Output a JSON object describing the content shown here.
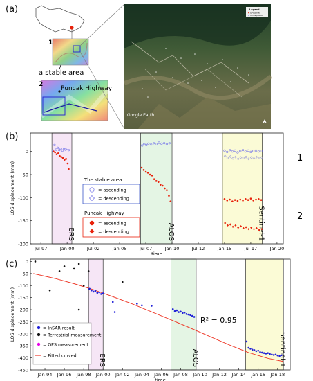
{
  "figure": {
    "panel_a_label": "(a)",
    "panel_b_label": "(b)",
    "panel_c_label": "(c)"
  },
  "panel_a": {
    "inset1_number": "1",
    "inset1_caption": "a stable area",
    "inset2_number": "2",
    "inset2_caption": "Puncak Highway",
    "satellite_watermark": "Google Earth",
    "satellite_legend_title": "Legend",
    "satellite_legend_items": [
      "GPS points",
      "Terms points"
    ]
  },
  "chart_data": [
    {
      "type": "scatter",
      "panel": "b",
      "xlabel": "time",
      "ylabel": "LOS displacement (mm)",
      "ylim": [
        -200,
        40
      ],
      "xlim": [
        1996.5,
        2020.6
      ],
      "yticks": [
        0,
        -50,
        -100,
        -150,
        -200
      ],
      "xticks": [
        {
          "label": "Jul-97",
          "value": 1997.5
        },
        {
          "label": "Jan-00",
          "value": 2000.0
        },
        {
          "label": "Jul-02",
          "value": 2002.5
        },
        {
          "label": "Jan-05",
          "value": 2005.0
        },
        {
          "label": "Jul-07",
          "value": 2007.5
        },
        {
          "label": "Jan-10",
          "value": 2010.0
        },
        {
          "label": "Jul-12",
          "value": 2012.5
        },
        {
          "label": "Jan-15",
          "value": 2015.0
        },
        {
          "label": "Jul-17",
          "value": 2017.5
        },
        {
          "label": "Jan-20",
          "value": 2020.0
        }
      ],
      "periods": [
        {
          "name": "ERS",
          "start": 1998.55,
          "end": 2000.45,
          "color": "#f6e6f6"
        },
        {
          "name": "ALOS",
          "start": 2007.0,
          "end": 2010.0,
          "color": "#e4f5e4"
        },
        {
          "name": "Sentinel-1",
          "start": 2014.8,
          "end": 2018.6,
          "color": "#fbfbd6"
        }
      ],
      "legend": {
        "stable_title": "The stable area",
        "ascending_label": "= ascending",
        "descending_label": "= descending",
        "highway_title": "Puncak Highway"
      },
      "side_labels": {
        "top": "1",
        "bottom": "2"
      },
      "series": [
        {
          "group": "stable",
          "orbit": "ascending",
          "color": "#7b7be8",
          "points": [
            [
              1998.65,
              2
            ],
            [
              1998.8,
              14
            ],
            [
              1998.95,
              4
            ],
            [
              1999.1,
              8
            ],
            [
              1999.25,
              3
            ],
            [
              1999.4,
              6
            ],
            [
              1999.55,
              2
            ],
            [
              1999.7,
              5
            ],
            [
              1999.85,
              4
            ],
            [
              2000.0,
              6
            ],
            [
              2000.15,
              3
            ]
          ]
        },
        {
          "group": "stable",
          "orbit": "ascending",
          "color": "#7b7be8",
          "points": [
            [
              2007.15,
              13
            ],
            [
              2007.35,
              16
            ],
            [
              2007.55,
              14
            ],
            [
              2007.75,
              17
            ],
            [
              2008.0,
              15
            ],
            [
              2008.25,
              18
            ],
            [
              2008.5,
              16
            ],
            [
              2008.75,
              19
            ],
            [
              2009.0,
              17
            ],
            [
              2009.25,
              18
            ],
            [
              2009.5,
              16
            ],
            [
              2009.75,
              18
            ]
          ]
        },
        {
          "group": "stable",
          "orbit": "ascending",
          "color": "#7b7be8",
          "points": [
            [
              2015.0,
              2
            ],
            [
              2015.25,
              -1
            ],
            [
              2015.5,
              3
            ],
            [
              2015.75,
              0
            ],
            [
              2016.0,
              2
            ],
            [
              2016.25,
              -2
            ],
            [
              2016.5,
              1
            ],
            [
              2016.75,
              3
            ],
            [
              2017.0,
              0
            ],
            [
              2017.25,
              2
            ],
            [
              2017.5,
              -1
            ],
            [
              2017.75,
              1
            ],
            [
              2018.0,
              2
            ],
            [
              2018.25,
              0
            ],
            [
              2018.5,
              1
            ]
          ]
        },
        {
          "group": "stable",
          "orbit": "descending",
          "color": "#a0a0d8",
          "points": [
            [
              2015.05,
              -10
            ],
            [
              2015.3,
              -14
            ],
            [
              2015.55,
              -11
            ],
            [
              2015.8,
              -15
            ],
            [
              2016.05,
              -12
            ],
            [
              2016.3,
              -16
            ],
            [
              2016.55,
              -13
            ],
            [
              2016.8,
              -14
            ],
            [
              2017.05,
              -12
            ],
            [
              2017.3,
              -16
            ],
            [
              2017.55,
              -13
            ],
            [
              2017.8,
              -15
            ],
            [
              2018.05,
              -12
            ],
            [
              2018.3,
              -14
            ],
            [
              2018.55,
              -13
            ]
          ]
        },
        {
          "group": "highway",
          "orbit": "ascending",
          "color": "#e8220c",
          "points": [
            [
              1998.7,
              0
            ],
            [
              1998.85,
              -2
            ],
            [
              1999.0,
              -6
            ],
            [
              1999.15,
              -4
            ],
            [
              1999.3,
              -10
            ],
            [
              1999.45,
              -12
            ],
            [
              1999.6,
              -14
            ],
            [
              1999.75,
              -18
            ],
            [
              1999.9,
              -16
            ],
            [
              2000.05,
              -26
            ],
            [
              2000.15,
              -38
            ]
          ]
        },
        {
          "group": "highway",
          "orbit": "ascending",
          "color": "#e8220c",
          "points": [
            [
              2007.1,
              -35
            ],
            [
              2007.3,
              -40
            ],
            [
              2007.5,
              -44
            ],
            [
              2007.7,
              -46
            ],
            [
              2007.9,
              -50
            ],
            [
              2008.1,
              -52
            ],
            [
              2008.3,
              -60
            ],
            [
              2008.5,
              -64
            ],
            [
              2008.7,
              -66
            ],
            [
              2008.9,
              -72
            ],
            [
              2009.1,
              -74
            ],
            [
              2009.3,
              -80
            ],
            [
              2009.5,
              -84
            ],
            [
              2009.7,
              -96
            ],
            [
              2009.85,
              -108
            ]
          ]
        },
        {
          "group": "highway",
          "orbit": "ascending",
          "color": "#e8220c",
          "points": [
            [
              2015.0,
              -103
            ],
            [
              2015.25,
              -106
            ],
            [
              2015.5,
              -104
            ],
            [
              2015.75,
              -108
            ],
            [
              2016.0,
              -105
            ],
            [
              2016.25,
              -107
            ],
            [
              2016.5,
              -104
            ],
            [
              2016.75,
              -106
            ],
            [
              2017.0,
              -103
            ],
            [
              2017.25,
              -105
            ],
            [
              2017.5,
              -102
            ],
            [
              2017.75,
              -106
            ],
            [
              2018.0,
              -104
            ],
            [
              2018.25,
              -103
            ],
            [
              2018.5,
              -105
            ]
          ]
        },
        {
          "group": "highway",
          "orbit": "descending",
          "color": "#e8220c",
          "points": [
            [
              2015.05,
              -155
            ],
            [
              2015.3,
              -160
            ],
            [
              2015.55,
              -158
            ],
            [
              2015.8,
              -163
            ],
            [
              2016.05,
              -160
            ],
            [
              2016.3,
              -165
            ],
            [
              2016.55,
              -162
            ],
            [
              2016.8,
              -166
            ],
            [
              2017.05,
              -164
            ],
            [
              2017.3,
              -168
            ],
            [
              2017.55,
              -165
            ],
            [
              2017.8,
              -168
            ],
            [
              2018.05,
              -166
            ],
            [
              2018.3,
              -170
            ],
            [
              2018.55,
              -168
            ]
          ]
        }
      ]
    },
    {
      "type": "scatter",
      "panel": "c",
      "xlabel": "time",
      "ylabel": "LOS displacement (mm)",
      "ylim": [
        -450,
        10
      ],
      "xlim": [
        1992.5,
        2019.3
      ],
      "yticks": [
        0,
        -50,
        -100,
        -150,
        -200,
        -250,
        -300,
        -350,
        -400,
        -450
      ],
      "xticks": [
        {
          "label": "Jan-94",
          "value": 1994
        },
        {
          "label": "Jan-96",
          "value": 1996
        },
        {
          "label": "Jan-98",
          "value": 1998
        },
        {
          "label": "Jan-00",
          "value": 2000
        },
        {
          "label": "Jan-02",
          "value": 2002
        },
        {
          "label": "Jan-04",
          "value": 2004
        },
        {
          "label": "Jan-06",
          "value": 2006
        },
        {
          "label": "Jan-08",
          "value": 2008
        },
        {
          "label": "Jan-10",
          "value": 2010
        },
        {
          "label": "Jan-12",
          "value": 2012
        },
        {
          "label": "Jan-14",
          "value": 2014
        },
        {
          "label": "Jan-16",
          "value": 2016
        },
        {
          "label": "Jan-18",
          "value": 2018
        }
      ],
      "periods": [
        {
          "name": "ERS",
          "start": 1998.5,
          "end": 2000.0,
          "color": "#f6e6f6"
        },
        {
          "name": "ALOS",
          "start": 2007.0,
          "end": 2009.6,
          "color": "#e4f5e4"
        },
        {
          "name": "Sentinel-1",
          "start": 2014.7,
          "end": 2018.6,
          "color": "#fbfbd6"
        }
      ],
      "legend": {
        "insar": "= InSAR result",
        "terrestrial": "= Terrestrial measurement",
        "gps": "= GPS measurement",
        "fitted": "= Fitted curved"
      },
      "annotation": "R² = 0.95",
      "fitted_curve": [
        [
          1992.8,
          -50
        ],
        [
          1995,
          -70
        ],
        [
          1997,
          -92
        ],
        [
          1999,
          -117
        ],
        [
          2001,
          -146
        ],
        [
          2003,
          -176
        ],
        [
          2005,
          -209
        ],
        [
          2007,
          -242
        ],
        [
          2009,
          -276
        ],
        [
          2011,
          -311
        ],
        [
          2013,
          -346
        ],
        [
          2015,
          -378
        ],
        [
          2017,
          -402
        ],
        [
          2018.6,
          -415
        ]
      ],
      "series": [
        {
          "name": "InSAR result",
          "color": "#2020d8",
          "points": [
            [
              1998.6,
              -113
            ],
            [
              1998.8,
              -120
            ],
            [
              1999.0,
              -125
            ],
            [
              1999.2,
              -122
            ],
            [
              1999.4,
              -130
            ],
            [
              1999.6,
              -128
            ],
            [
              1999.8,
              -135
            ],
            [
              2000.0,
              -132
            ],
            [
              2001.0,
              -168
            ],
            [
              2001.2,
              -210
            ],
            [
              2003.5,
              -175
            ],
            [
              2004.0,
              -182
            ],
            [
              2005.0,
              -184
            ],
            [
              2007.2,
              -198
            ],
            [
              2007.4,
              -206
            ],
            [
              2007.6,
              -203
            ],
            [
              2007.8,
              -210
            ],
            [
              2008.0,
              -208
            ],
            [
              2008.2,
              -214
            ],
            [
              2008.4,
              -212
            ],
            [
              2008.6,
              -218
            ],
            [
              2008.8,
              -220
            ],
            [
              2009.0,
              -222
            ],
            [
              2009.2,
              -226
            ],
            [
              2009.4,
              -230
            ],
            [
              2014.8,
              -332
            ],
            [
              2015.0,
              -358
            ],
            [
              2015.2,
              -362
            ],
            [
              2015.4,
              -366
            ],
            [
              2015.6,
              -368
            ],
            [
              2015.8,
              -372
            ],
            [
              2016.0,
              -370
            ],
            [
              2016.2,
              -376
            ],
            [
              2016.4,
              -378
            ],
            [
              2016.6,
              -380
            ],
            [
              2016.8,
              -382
            ],
            [
              2017.0,
              -380
            ],
            [
              2017.2,
              -384
            ],
            [
              2017.4,
              -386
            ],
            [
              2017.6,
              -388
            ],
            [
              2017.8,
              -386
            ],
            [
              2018.0,
              -390
            ],
            [
              2018.2,
              -392
            ],
            [
              2018.4,
              -389
            ]
          ]
        },
        {
          "name": "Terrestrial measurement",
          "color": "#111111",
          "points": [
            [
              1993.0,
              0
            ],
            [
              1994.5,
              -120
            ],
            [
              1995.5,
              -40
            ],
            [
              1996.0,
              -20
            ],
            [
              1997.0,
              -30
            ],
            [
              1997.5,
              -10
            ],
            [
              1997.5,
              -200
            ],
            [
              1998.0,
              -100
            ],
            [
              1998.5,
              -40
            ],
            [
              2002.0,
              -85
            ]
          ]
        },
        {
          "name": "GPS measurement",
          "color": "#e800e8",
          "points": []
        }
      ]
    }
  ]
}
